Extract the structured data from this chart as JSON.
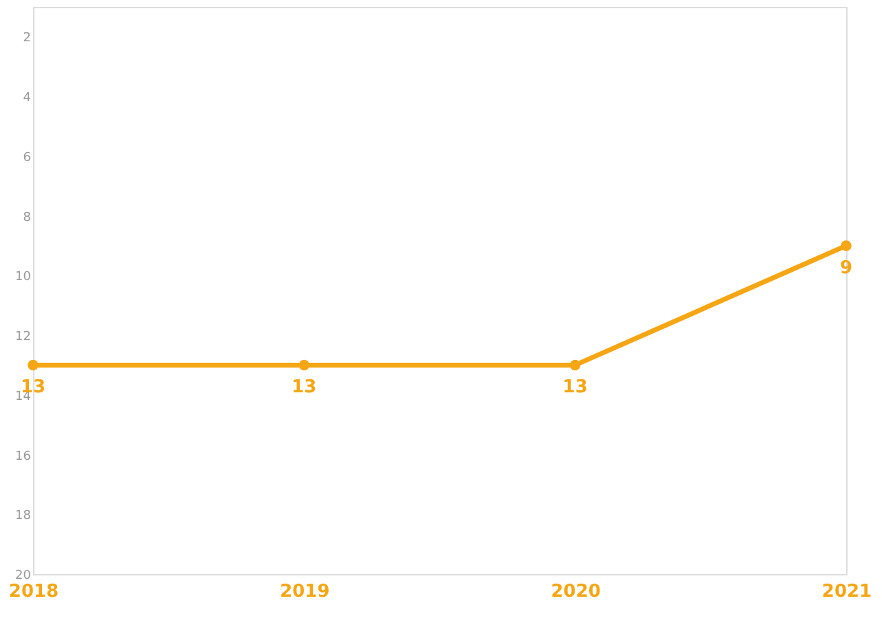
{
  "chart_data": {
    "type": "line",
    "categories": [
      "2018",
      "2019",
      "2020",
      "2021"
    ],
    "series": [
      {
        "color": "#f5a614",
        "values": [
          13,
          13,
          13,
          9
        ]
      }
    ],
    "ylim": [
      20,
      1
    ],
    "yticks": [
      2,
      4,
      6,
      8,
      10,
      12,
      14,
      16,
      18,
      20
    ],
    "grid": false,
    "marker": "circle",
    "line_style": "solid",
    "data_labels": true
  }
}
